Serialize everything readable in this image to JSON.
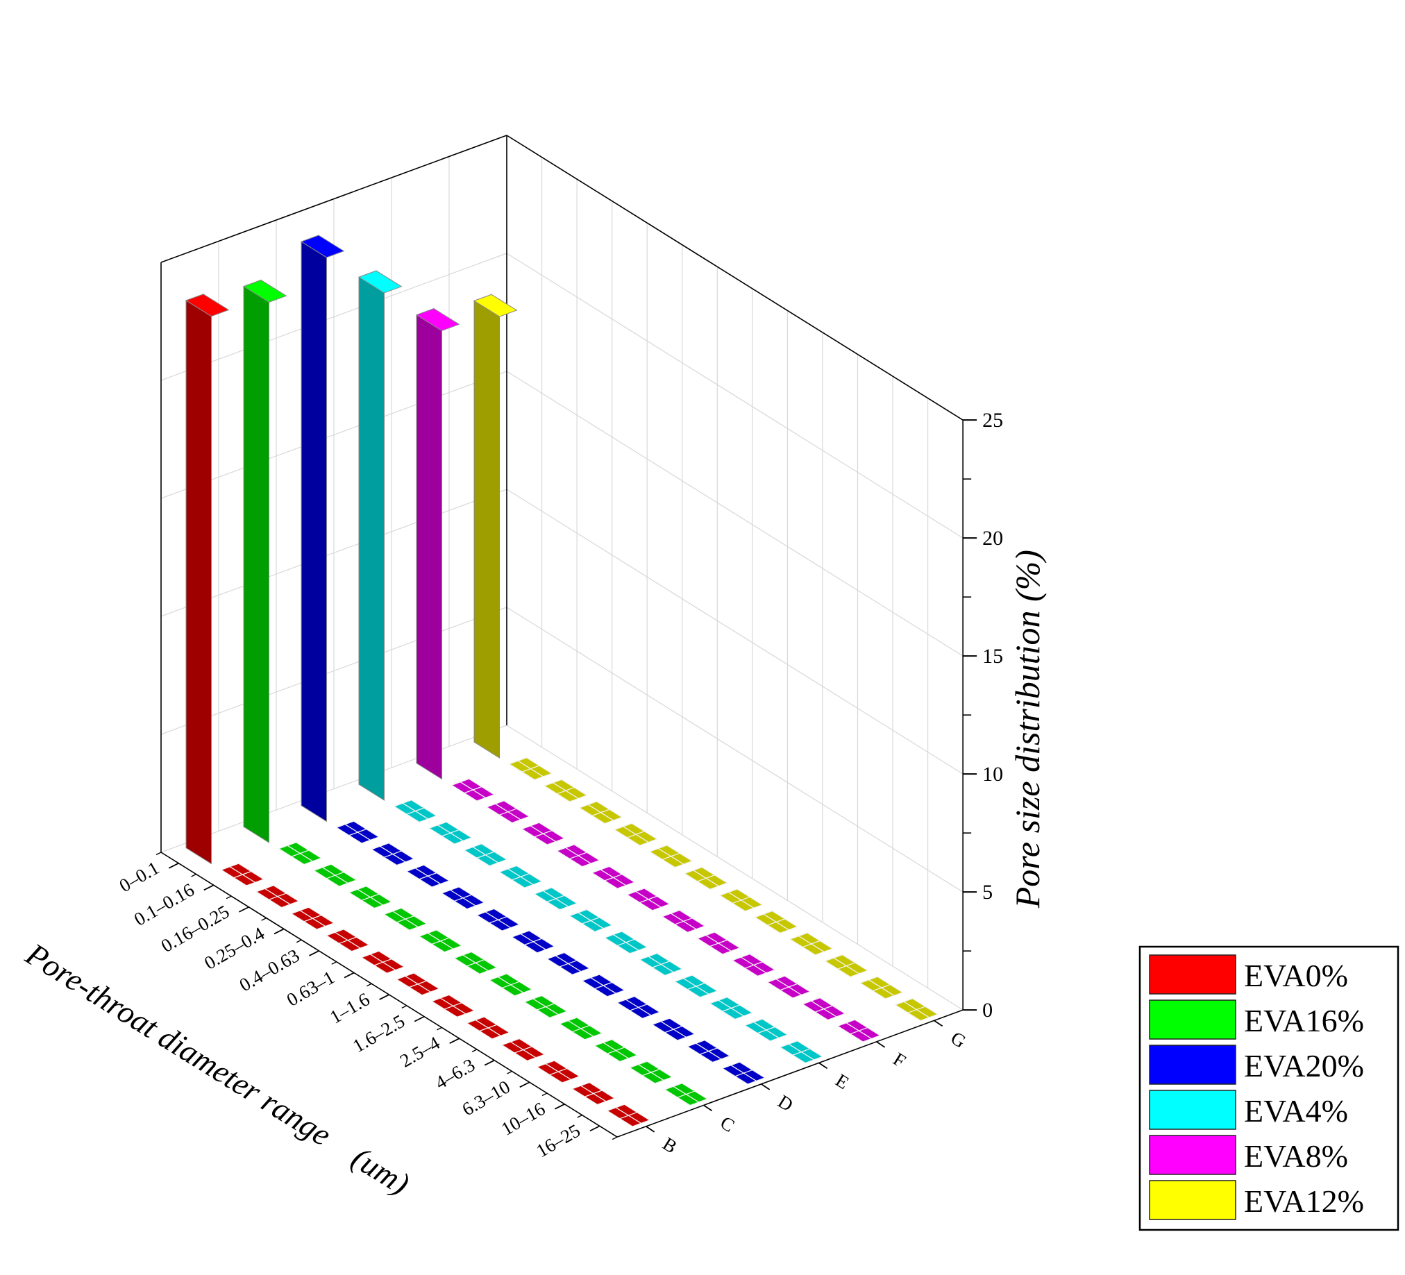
{
  "chart_data": {
    "type": "bar3d",
    "categories": [
      "0–0.1",
      "0.1–0.16",
      "0.16–0.25",
      "0.25–0.4",
      "0.4–0.63",
      "0.63–1",
      "1–1.6",
      "1.6–2.5",
      "2.5–4",
      "4–6.3",
      "6.3–10",
      "10–16",
      "16–25"
    ],
    "depth_labels": [
      "B",
      "C",
      "D",
      "E",
      "F",
      "G"
    ],
    "xlabel": "Pore-throat diameter range　(um)",
    "zlabel": "Pore size distribution (%)",
    "zlim": [
      0,
      25
    ],
    "zticks": [
      0,
      5,
      10,
      15,
      20,
      25
    ],
    "grid": true,
    "legend_position": "bottom-right",
    "series": [
      {
        "name": "EVA0%",
        "depth": "B",
        "color": "#ff0000",
        "values": [
          23.2,
          0,
          0,
          0,
          0,
          0,
          0,
          0,
          0,
          0,
          0,
          0,
          0
        ]
      },
      {
        "name": "EVA16%",
        "depth": "C",
        "color": "#00ff00",
        "values": [
          22.9,
          0,
          0,
          0,
          0,
          0,
          0,
          0,
          0,
          0,
          0,
          0,
          0
        ]
      },
      {
        "name": "EVA20%",
        "depth": "D",
        "color": "#0000ff",
        "values": [
          23.9,
          0,
          0,
          0,
          0,
          0,
          0,
          0,
          0,
          0,
          0,
          0,
          0
        ]
      },
      {
        "name": "EVA4%",
        "depth": "E",
        "color": "#00ffff",
        "values": [
          21.5,
          0,
          0,
          0,
          0,
          0,
          0,
          0,
          0,
          0,
          0,
          0,
          0
        ]
      },
      {
        "name": "EVA8%",
        "depth": "F",
        "color": "#ff00ff",
        "values": [
          19.0,
          0,
          0,
          0,
          0,
          0,
          0,
          0,
          0,
          0,
          0,
          0,
          0
        ]
      },
      {
        "name": "EVA12%",
        "depth": "G",
        "color": "#ffff00",
        "values": [
          18.7,
          0,
          0,
          0,
          0,
          0,
          0,
          0,
          0,
          0,
          0,
          0,
          0
        ]
      }
    ]
  }
}
